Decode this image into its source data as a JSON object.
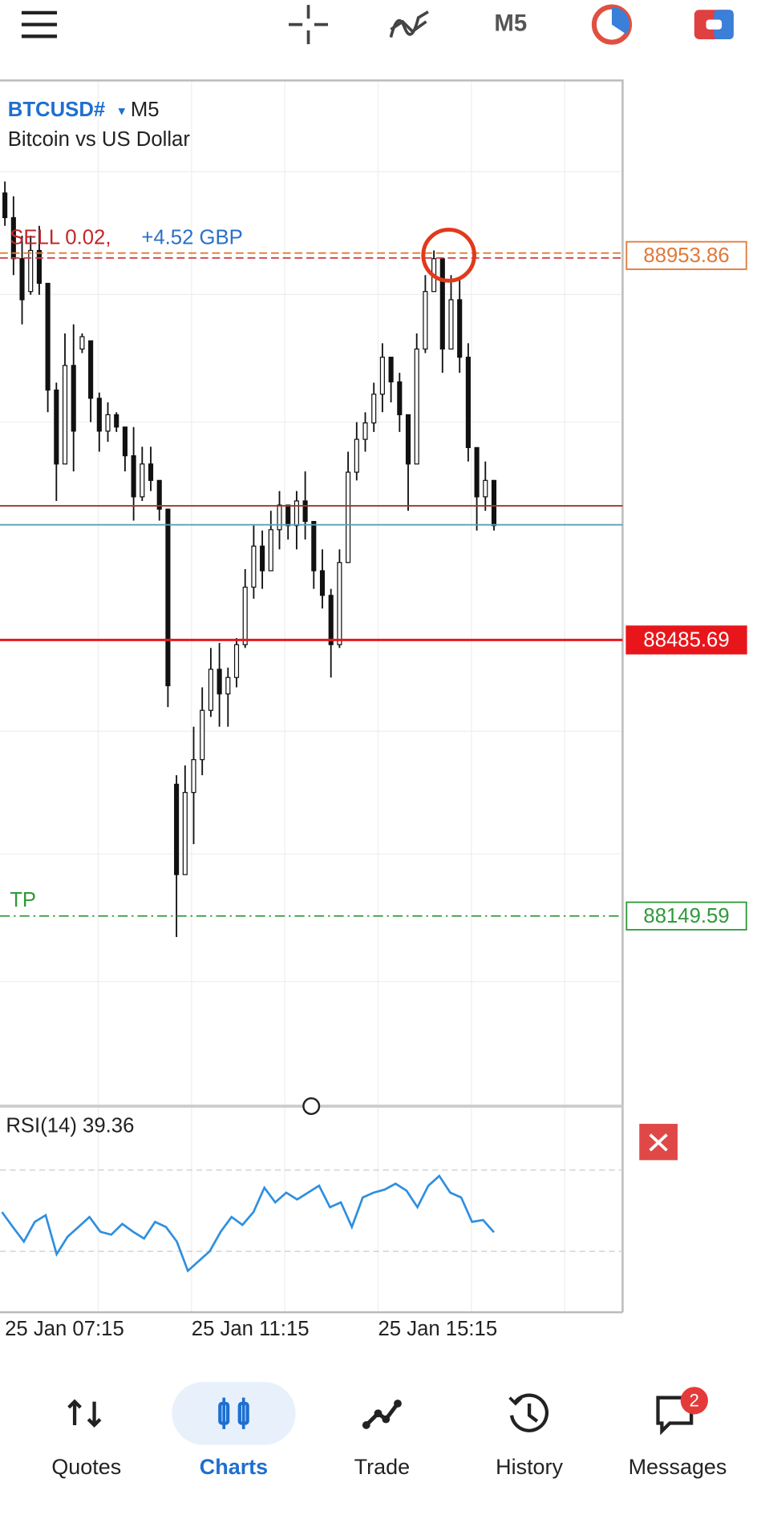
{
  "top_bar": {
    "timeframe": "M5"
  },
  "chart": {
    "symbol": "BTCUSD#",
    "timeframe": "M5",
    "description": "Bitcoin vs US Dollar",
    "position": {
      "label": "SELL 0.02,",
      "profit": "+4.52 GBP"
    },
    "ylim": [
      87918,
      89167
    ],
    "candles": {
      "open": [
        89030,
        89000,
        88950,
        88910,
        88960,
        88920,
        88790,
        88700,
        88820,
        88840,
        88850,
        88780,
        88740,
        88760,
        88745,
        88710,
        88660,
        88700,
        88680,
        88645,
        88310,
        88200,
        88300,
        88340,
        88400,
        88450,
        88420,
        88440,
        88480,
        88550,
        88600,
        88570,
        88620,
        88650,
        88625,
        88655,
        88630,
        88570,
        88540,
        88480,
        88580,
        88690,
        88730,
        88750,
        88785,
        88830,
        88800,
        88760,
        88700,
        88840,
        88910,
        88950,
        88840,
        88900,
        88830,
        88720,
        88660,
        88680
      ],
      "high": [
        89044,
        89026,
        88978,
        88978,
        88990,
        88906,
        88799,
        88859,
        88870,
        88859,
        88847,
        88787,
        88775,
        88763,
        88739,
        88745,
        88721,
        88721,
        88667,
        88643,
        88321,
        88333,
        88380,
        88428,
        88476,
        88482,
        88452,
        88488,
        88572,
        88625,
        88619,
        88643,
        88667,
        88643,
        88667,
        88691,
        88619,
        88596,
        88548,
        88596,
        88715,
        88751,
        88763,
        88799,
        88847,
        88823,
        88811,
        88739,
        88859,
        88930,
        88960,
        88918,
        88930,
        88924,
        88847,
        88715,
        88703,
        88667
      ],
      "low": [
        88990,
        88930,
        88870,
        88906,
        88906,
        88763,
        88655,
        88727,
        88691,
        88835,
        88751,
        88715,
        88727,
        88739,
        88691,
        88631,
        88655,
        88667,
        88631,
        88404,
        88124,
        88249,
        88237,
        88321,
        88392,
        88380,
        88380,
        88428,
        88476,
        88536,
        88548,
        88572,
        88596,
        88608,
        88596,
        88608,
        88548,
        88524,
        88440,
        88476,
        88608,
        88680,
        88715,
        88739,
        88763,
        88775,
        88739,
        88643,
        88763,
        88835,
        88918,
        88811,
        88847,
        88811,
        88703,
        88619,
        88643,
        88619
      ],
      "close": [
        89000,
        88950,
        88900,
        88960,
        88920,
        88790,
        88700,
        88820,
        88740,
        88855,
        88780,
        88740,
        88760,
        88745,
        88710,
        88660,
        88700,
        88680,
        88645,
        88430,
        88200,
        88300,
        88340,
        88400,
        88450,
        88420,
        88440,
        88480,
        88550,
        88600,
        88570,
        88620,
        88650,
        88625,
        88655,
        88630,
        88570,
        88540,
        88480,
        88580,
        88690,
        88730,
        88750,
        88785,
        88830,
        88800,
        88760,
        88700,
        88840,
        88910,
        88950,
        88840,
        88900,
        88830,
        88720,
        88660,
        88680,
        88625
      ]
    },
    "levels": [
      {
        "value": 88953.86,
        "color": "#e07a3a",
        "style": "dashed"
      },
      {
        "value": 88485.69,
        "color": "#e8161b",
        "style": "solid"
      },
      {
        "value": 88149.59,
        "color": "#2e9a3a",
        "style": "dashdot"
      }
    ],
    "take_profit_label": "TP",
    "bid": 88649,
    "ask": 88626,
    "time_labels": [
      "25 Jan 07:15",
      "25 Jan 11:15",
      "25 Jan 15:15"
    ]
  },
  "rsi": {
    "label": "RSI(14) 39.36",
    "ylim": [
      0,
      100
    ],
    "levels": [
      70,
      30
    ],
    "color": "#2f8fe0",
    "values": [
      49.3,
      42.0,
      34.8,
      44.5,
      47.8,
      28.6,
      37.2,
      42.0,
      46.9,
      39.6,
      38.2,
      43.5,
      39.6,
      36.3,
      44.5,
      42.0,
      34.8,
      20.4,
      25.2,
      30,
      39.6,
      46.9,
      43.0,
      49.3,
      61.3,
      54.1,
      58.9,
      55.5,
      58.9,
      62.3,
      51.7,
      54.1,
      42.0,
      56.5,
      58.9,
      60.4,
      63.3,
      59.9,
      51.7,
      62.3,
      67.1,
      58.9,
      56.5,
      44.5,
      45.4,
      39.36
    ]
  },
  "nav": {
    "items": [
      {
        "label": "Quotes"
      },
      {
        "label": "Charts"
      },
      {
        "label": "Trade"
      },
      {
        "label": "History"
      },
      {
        "label": "Messages"
      }
    ],
    "active": 1,
    "badge": "2"
  }
}
